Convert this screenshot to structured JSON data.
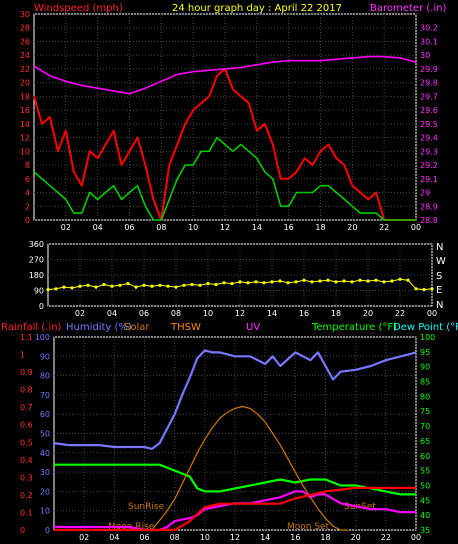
{
  "top_panel": {
    "title_left": "Windspeed (mph)",
    "title_center": "24 hour graph day : April 22 2017",
    "title_right": "Barometer (.in)"
  },
  "wind_panel": {
    "compass_labels": [
      "N",
      "W",
      "S",
      "E",
      "N"
    ]
  },
  "bottom_panel": {
    "headers": [
      "Rainfall (.in)",
      "Humidity (%)",
      "Solar",
      "THSW",
      "UV",
      "Temperature (°F)",
      "Dew Point (°F)"
    ],
    "header_colors": [
      "#ff2020",
      "#7777ff",
      "#cc7700",
      "#ff8800",
      "#ff33ff",
      "#00ff00",
      "#00ffff"
    ],
    "annotations": {
      "sunrise": "SunRise",
      "sunset": "SunSet",
      "moonrise": "Moon Rise",
      "moonset": "Moon Set"
    }
  },
  "colors": {
    "windspeed": "#ff0000",
    "gust": "#00cc00",
    "barometer": "#ff00ff",
    "wind_direction": "#ffff00",
    "humidity": "#7777ff",
    "temperature": "#00ff00",
    "dewpoint": "#ff00ff",
    "solar": "#cc7700",
    "rainfall": "#ff0000",
    "axis": "#ffffff",
    "grid": "#444444"
  },
  "chart_data": [
    {
      "type": "line",
      "x_tick_labels": [
        "02",
        "04",
        "06",
        "08",
        "10",
        "12",
        "14",
        "16",
        "18",
        "20",
        "22",
        "00"
      ],
      "xlim": [
        0,
        24
      ],
      "left_axis": {
        "label": "Windspeed (mph)",
        "ticks": [
          0,
          2,
          4,
          6,
          8,
          10,
          12,
          14,
          16,
          18,
          20,
          22,
          24,
          26,
          28,
          30
        ],
        "ylim": [
          0,
          30
        ]
      },
      "right_axis": {
        "label": "Barometer (.in)",
        "ticks": [
          28.8,
          28.9,
          29.0,
          29.1,
          29.2,
          29.3,
          29.4,
          29.5,
          29.6,
          29.7,
          29.8,
          29.9,
          30.0,
          30.1,
          30.2
        ],
        "tick_labels": [
          "28.8",
          "28.9",
          "29",
          "29.1",
          "29.2",
          "29.3",
          "29.4",
          "29.5",
          "29.6",
          "29.7",
          "29.8",
          "29.9",
          "30",
          "30.1",
          "30.2"
        ],
        "ylim": [
          28.8,
          30.3
        ]
      },
      "series": [
        {
          "axis": "left",
          "x": [
            0,
            0.5,
            1,
            1.5,
            2,
            2.5,
            3,
            3.5,
            4,
            4.5,
            5,
            5.5,
            6,
            6.5,
            7,
            7.5,
            8,
            8.5,
            9,
            9.5,
            10,
            10.5,
            11,
            11.5,
            12,
            12.5,
            13,
            13.5,
            14,
            14.5,
            15,
            15.5,
            16,
            16.5,
            17,
            17.5,
            18,
            18.5,
            19,
            19.5,
            20,
            20.5,
            21,
            21.5,
            22,
            22.5,
            23,
            23.5,
            24
          ],
          "values": [
            18,
            14,
            15,
            10,
            13,
            7,
            5,
            10,
            9,
            11,
            13,
            8,
            10,
            12,
            8,
            3,
            0,
            8,
            11,
            14,
            16,
            17,
            18,
            21,
            22,
            19,
            18,
            17,
            13,
            14,
            11,
            6,
            6,
            7,
            9,
            8,
            10,
            11,
            9,
            8,
            5,
            4,
            3,
            4,
            0,
            0,
            0,
            0,
            0
          ]
        },
        {
          "axis": "left",
          "x": [
            0,
            0.5,
            1,
            1.5,
            2,
            2.5,
            3,
            3.5,
            4,
            4.5,
            5,
            5.5,
            6,
            6.5,
            7,
            7.5,
            8,
            8.5,
            9,
            9.5,
            10,
            10.5,
            11,
            11.5,
            12,
            12.5,
            13,
            13.5,
            14,
            14.5,
            15,
            15.5,
            16,
            16.5,
            17,
            17.5,
            18,
            18.5,
            19,
            19.5,
            20,
            20.5,
            21,
            21.5,
            22,
            22.5,
            23,
            23.5,
            24
          ],
          "values": [
            7,
            6,
            5,
            4,
            3,
            1,
            1,
            4,
            3,
            4,
            5,
            3,
            4,
            5,
            2,
            0,
            0,
            3,
            6,
            8,
            8,
            10,
            10,
            12,
            11,
            10,
            11,
            10,
            9,
            7,
            6,
            2,
            2,
            4,
            4,
            4,
            5,
            5,
            4,
            3,
            2,
            1,
            1,
            1,
            0,
            0,
            0,
            0,
            0
          ]
        },
        {
          "axis": "right",
          "x": [
            0,
            1,
            2,
            3,
            4,
            5,
            6,
            7,
            8,
            9,
            10,
            11,
            12,
            13,
            14,
            15,
            16,
            17,
            18,
            19,
            20,
            21,
            22,
            23,
            24
          ],
          "values": [
            29.92,
            29.85,
            29.81,
            29.78,
            29.76,
            29.74,
            29.72,
            29.76,
            29.81,
            29.86,
            29.88,
            29.89,
            29.9,
            29.91,
            29.93,
            29.95,
            29.96,
            29.96,
            29.96,
            29.97,
            29.98,
            29.99,
            29.99,
            29.98,
            29.95
          ]
        }
      ]
    },
    {
      "type": "scatter",
      "x_tick_labels": [
        "02",
        "04",
        "06",
        "08",
        "10",
        "12",
        "14",
        "16",
        "18",
        "20",
        "22",
        "00"
      ],
      "xlim": [
        0,
        24
      ],
      "left_axis": {
        "ticks": [
          0,
          90,
          180,
          270,
          360
        ],
        "ylim": [
          0,
          360
        ]
      },
      "series": [
        {
          "x": [
            0,
            0.5,
            1,
            1.5,
            2,
            2.5,
            3,
            3.5,
            4,
            4.5,
            5,
            5.5,
            6,
            6.5,
            7,
            7.5,
            8,
            8.5,
            9,
            9.5,
            10,
            10.5,
            11,
            11.5,
            12,
            12.5,
            13,
            13.5,
            14,
            14.5,
            15,
            15.5,
            16,
            16.5,
            17,
            17.5,
            18,
            18.5,
            19,
            19.5,
            20,
            20.5,
            21,
            21.5,
            22,
            22.5,
            23,
            23.5,
            24
          ],
          "values": [
            95,
            100,
            110,
            105,
            115,
            120,
            110,
            125,
            115,
            120,
            130,
            110,
            120,
            115,
            120,
            115,
            110,
            120,
            125,
            120,
            130,
            125,
            135,
            130,
            140,
            135,
            140,
            135,
            140,
            145,
            135,
            140,
            150,
            140,
            145,
            150,
            140,
            145,
            140,
            150,
            145,
            150,
            140,
            145,
            155,
            150,
            100,
            95,
            100
          ]
        }
      ]
    },
    {
      "type": "line",
      "x_tick_labels": [
        "02",
        "04",
        "06",
        "08",
        "10",
        "12",
        "14",
        "16",
        "18",
        "20",
        "22",
        "00"
      ],
      "xlim": [
        0,
        24
      ],
      "left_axis": {
        "label": "Humidity (%)",
        "ticks": [
          0,
          10,
          20,
          30,
          40,
          50,
          60,
          70,
          80,
          90,
          100
        ],
        "ylim": [
          0,
          100
        ]
      },
      "rain_axis": {
        "label": "Rainfall (.in)",
        "ticks": [
          0,
          0.1,
          0.2,
          0.3,
          0.4,
          0.5,
          0.6,
          0.7,
          0.8,
          0.9,
          1.0,
          1.1
        ],
        "tick_labels": [
          "0",
          "0.1",
          "0.2",
          "0.3",
          "0.4",
          "0.5",
          "0.6",
          "0.7",
          "0.8",
          "0.9",
          "1",
          "1.1"
        ],
        "ylim": [
          0,
          1.1
        ]
      },
      "right_axis": {
        "label": "Temperature (°F)",
        "ticks": [
          35,
          40,
          45,
          50,
          55,
          60,
          65,
          70,
          75,
          80,
          85,
          90,
          95,
          100
        ],
        "ylim": [
          35,
          100
        ]
      },
      "series": [
        {
          "axis": "left",
          "x": [
            0,
            1,
            2,
            3,
            4,
            5,
            6,
            6.5,
            7,
            8,
            8.5,
            9,
            9.5,
            10,
            10.5,
            11,
            12,
            13,
            14,
            14.5,
            15,
            16,
            17,
            17.5,
            18,
            18.5,
            19,
            20,
            21,
            22,
            23,
            24
          ],
          "values": [
            45,
            44,
            44,
            44,
            43,
            43,
            43,
            42,
            45,
            60,
            70,
            79,
            89,
            93,
            92,
            92,
            90,
            90,
            86,
            90,
            85,
            92,
            88,
            92,
            85,
            78,
            82,
            83,
            85,
            88,
            90,
            92
          ]
        },
        {
          "axis": "right",
          "x": [
            0,
            1,
            2,
            3,
            4,
            5,
            6,
            7,
            7.5,
            8,
            9,
            9.5,
            10,
            11,
            12,
            13,
            14,
            15,
            16,
            17,
            18,
            19,
            20,
            21,
            22,
            23,
            24
          ],
          "values": [
            57,
            57,
            57,
            57,
            57,
            57,
            57,
            57,
            56,
            55,
            53,
            49,
            48,
            48,
            49,
            50,
            51,
            52,
            51,
            52,
            52,
            50,
            50,
            49,
            48,
            47,
            47
          ]
        },
        {
          "axis": "right",
          "x": [
            0,
            1,
            2,
            3,
            4,
            5,
            6,
            7,
            7.5,
            8,
            9,
            9.5,
            10,
            11,
            12,
            13,
            14,
            15,
            16,
            16.5,
            17,
            17.5,
            18,
            19,
            20,
            21,
            22,
            23,
            24
          ],
          "values": [
            36,
            36,
            36,
            36,
            36,
            36,
            35,
            35,
            36,
            38,
            39,
            40,
            42,
            43,
            44,
            44,
            45,
            46,
            48,
            48,
            46,
            47,
            47,
            44,
            43,
            42,
            42,
            41,
            41
          ]
        },
        {
          "axis": "left",
          "x": [
            6.5,
            7,
            7.5,
            8,
            8.5,
            9,
            9.5,
            10,
            10.5,
            11,
            11.5,
            12,
            12.5,
            13,
            13.5,
            14,
            14.5,
            15,
            15.5,
            16,
            16.5,
            17,
            17.5,
            18,
            18.5,
            19,
            19.5
          ],
          "values": [
            0,
            5,
            10,
            16,
            24,
            32,
            40,
            47,
            53,
            58,
            61,
            63,
            64,
            63,
            60,
            56,
            50,
            44,
            37,
            30,
            23,
            17,
            11,
            6,
            2,
            0,
            0
          ]
        },
        {
          "axis": "rain",
          "x": [
            0,
            6,
            7,
            8,
            9,
            10,
            11,
            12,
            13,
            14,
            15,
            16,
            17,
            18,
            19,
            20,
            21,
            22,
            23,
            24
          ],
          "values": [
            0,
            0,
            0,
            0,
            0.05,
            0.13,
            0.15,
            0.15,
            0.15,
            0.15,
            0.15,
            0.18,
            0.2,
            0.22,
            0.23,
            0.24,
            0.24,
            0.24,
            0.24,
            0.24
          ]
        }
      ]
    }
  ]
}
